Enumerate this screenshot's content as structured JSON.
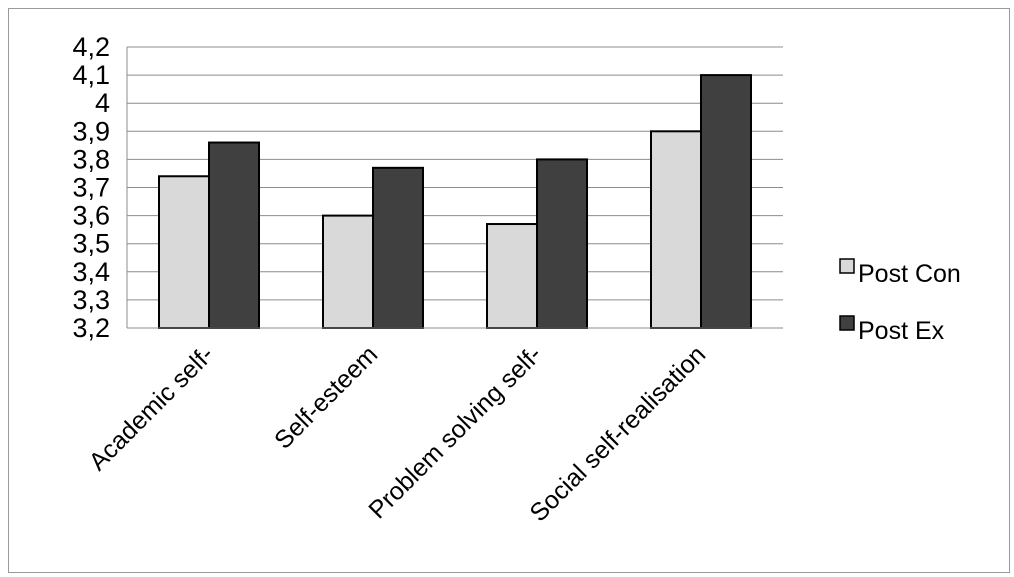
{
  "chart_data": {
    "type": "bar",
    "categories": [
      "Academic self-",
      "Self-esteem",
      "Problem solving self-",
      "Social self-realisation"
    ],
    "series": [
      {
        "name": "Post Con",
        "values": [
          3.74,
          3.6,
          3.57,
          3.9
        ],
        "color": "#d9d9d9"
      },
      {
        "name": "Post Ex",
        "values": [
          3.86,
          3.77,
          3.8,
          4.1
        ],
        "color": "#404040"
      }
    ],
    "yticks": [
      "3,2",
      "3,3",
      "3,4",
      "3,5",
      "3,6",
      "3,7",
      "3,8",
      "3,9",
      "4",
      "4,1",
      "4,2"
    ],
    "ylim": [
      3.2,
      4.2
    ],
    "grid": true,
    "legend_position": "right",
    "title": "",
    "xlabel": "",
    "ylabel": ""
  }
}
